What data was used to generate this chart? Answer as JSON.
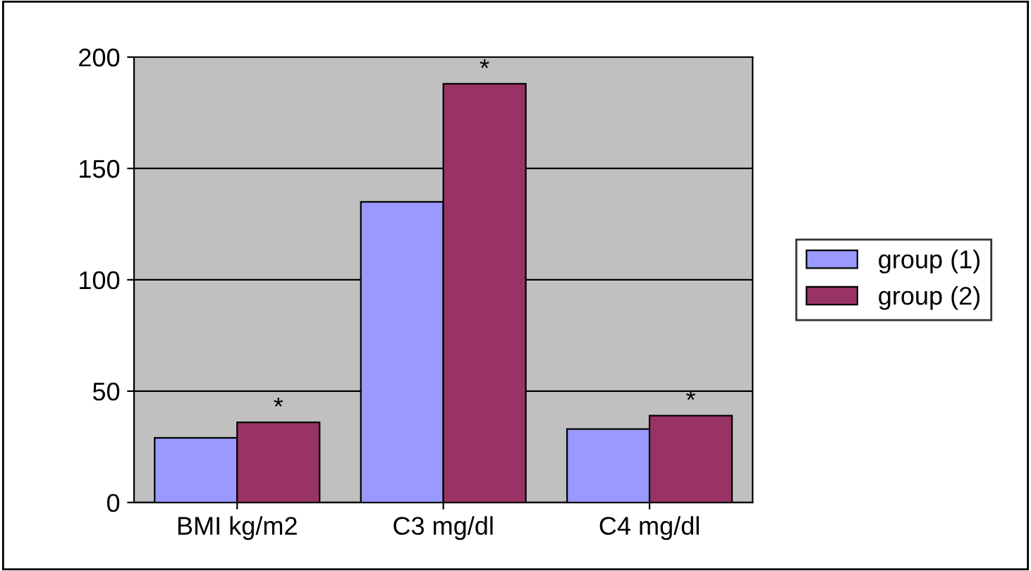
{
  "chart_data": {
    "type": "bar",
    "categories": [
      "BMI kg/m2",
      "C3 mg/dl",
      "C4 mg/dl"
    ],
    "series": [
      {
        "name": "group (1)",
        "color": "#9999ff",
        "values": [
          29,
          135,
          33
        ]
      },
      {
        "name": "group (2)",
        "color": "#993366",
        "values": [
          36,
          188,
          39
        ]
      }
    ],
    "ylim": [
      0,
      200
    ],
    "yticks": [
      0,
      50,
      100,
      150,
      200
    ],
    "grid": "y",
    "legend": "right",
    "annotations": [
      "*",
      "*",
      "*"
    ]
  }
}
